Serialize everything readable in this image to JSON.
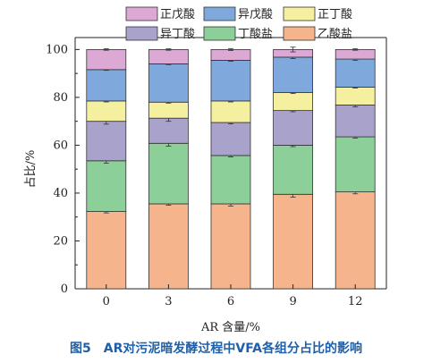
{
  "chart_data": {
    "type": "bar",
    "stacked": true,
    "categories": [
      "0",
      "3",
      "6",
      "9",
      "12"
    ],
    "xlabel": "AR 含量/%",
    "ylabel": "占比/%",
    "ylim": [
      0,
      105
    ],
    "yticks": [
      0,
      20,
      40,
      60,
      80,
      100
    ],
    "series": [
      {
        "name": "乙酸盐",
        "color": "#f5b48c",
        "values": [
          32.3,
          35.5,
          35.5,
          39.5,
          40.5
        ],
        "errors": [
          0.6,
          0.6,
          0.9,
          1.2,
          0.8
        ]
      },
      {
        "name": "丁酸盐",
        "color": "#8ccf98",
        "values": [
          21.2,
          25.3,
          20.2,
          20.5,
          23.0
        ],
        "errors": [
          1.0,
          1.2,
          0.6,
          0.6,
          0.5
        ]
      },
      {
        "name": "异丁酸",
        "color": "#a9a2cb",
        "values": [
          16.5,
          10.5,
          13.8,
          14.5,
          13.3
        ],
        "errors": [
          1.2,
          1.3,
          0.6,
          0.5,
          0.8
        ]
      },
      {
        "name": "正丁酸",
        "color": "#f5f0a0",
        "values": [
          8.5,
          6.7,
          9.0,
          7.5,
          7.5
        ],
        "errors": [
          0.4,
          0.4,
          0.4,
          0.4,
          0.4
        ]
      },
      {
        "name": "异戊酸",
        "color": "#7fa9dc",
        "values": [
          13.1,
          16.0,
          17.0,
          14.8,
          11.7
        ],
        "errors": [
          0.3,
          0.3,
          0.4,
          0.6,
          0.5
        ]
      },
      {
        "name": "正戊酸",
        "color": "#dca8d4",
        "values": [
          8.4,
          6.0,
          4.5,
          3.2,
          4.0
        ],
        "errors": [
          0.3,
          0.3,
          0.4,
          1.0,
          0.3
        ]
      }
    ],
    "legend_order": [
      "正戊酸",
      "异戊酸",
      "正丁酸",
      "异丁酸",
      "丁酸盐",
      "乙酸盐"
    ],
    "legend_position": "top"
  },
  "caption": "图5　AR对污泥暗发酵过程中VFA各组分占比的影响"
}
